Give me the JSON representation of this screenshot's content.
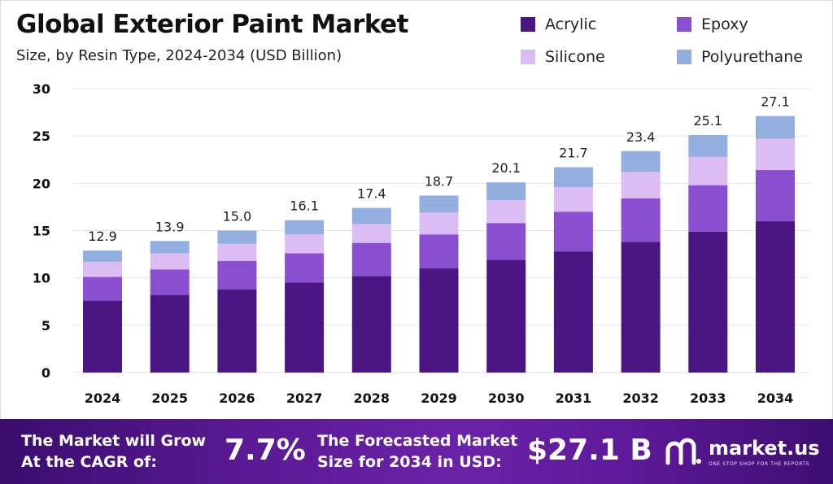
{
  "title": "Global Exterior Paint Market",
  "subtitle": "Size, by Resin Type, 2024-2034 (USD Billion)",
  "colors": {
    "acrylic": "#4a1782",
    "epoxy": "#8a4fd1",
    "silicone": "#dcbdf3",
    "polyurethane": "#93afdf",
    "footer": "#5a1a94"
  },
  "chart_data": {
    "type": "bar",
    "stacked": true,
    "categories": [
      "2024",
      "2025",
      "2026",
      "2027",
      "2028",
      "2029",
      "2030",
      "2031",
      "2032",
      "2033",
      "2034"
    ],
    "series": [
      {
        "name": "Acrylic",
        "values": [
          7.6,
          8.2,
          8.8,
          9.5,
          10.2,
          11.0,
          11.9,
          12.8,
          13.8,
          14.9,
          16.0
        ]
      },
      {
        "name": "Epoxy",
        "values": [
          2.5,
          2.7,
          3.0,
          3.1,
          3.5,
          3.6,
          3.9,
          4.2,
          4.6,
          4.9,
          5.4
        ]
      },
      {
        "name": "Silicone",
        "values": [
          1.6,
          1.7,
          1.8,
          2.0,
          2.0,
          2.3,
          2.4,
          2.6,
          2.8,
          3.0,
          3.3
        ]
      },
      {
        "name": "Polyurethane",
        "values": [
          1.2,
          1.3,
          1.4,
          1.5,
          1.7,
          1.8,
          1.9,
          2.1,
          2.2,
          2.3,
          2.4
        ]
      }
    ],
    "totals": [
      "12.9",
      "13.9",
      "15.0",
      "16.1",
      "17.4",
      "18.7",
      "20.1",
      "21.7",
      "23.4",
      "25.1",
      "27.1"
    ],
    "yticks": [
      "0",
      "5",
      "10",
      "15",
      "20",
      "25",
      "30"
    ],
    "ylim": [
      0,
      30
    ],
    "grid": true,
    "legend_position": "top-right"
  },
  "footer": {
    "cagr_label_line1": "The Market will Grow",
    "cagr_label_line2": "At the CAGR of:",
    "cagr_value": "7.7%",
    "forecast_label_line1": "The Forecasted Market",
    "forecast_label_line2": "Size for 2034 in USD:",
    "forecast_value": "$27.1 B",
    "brand_name": "market.us",
    "brand_tagline": "ONE STOP SHOP FOR THE REPORTS"
  }
}
